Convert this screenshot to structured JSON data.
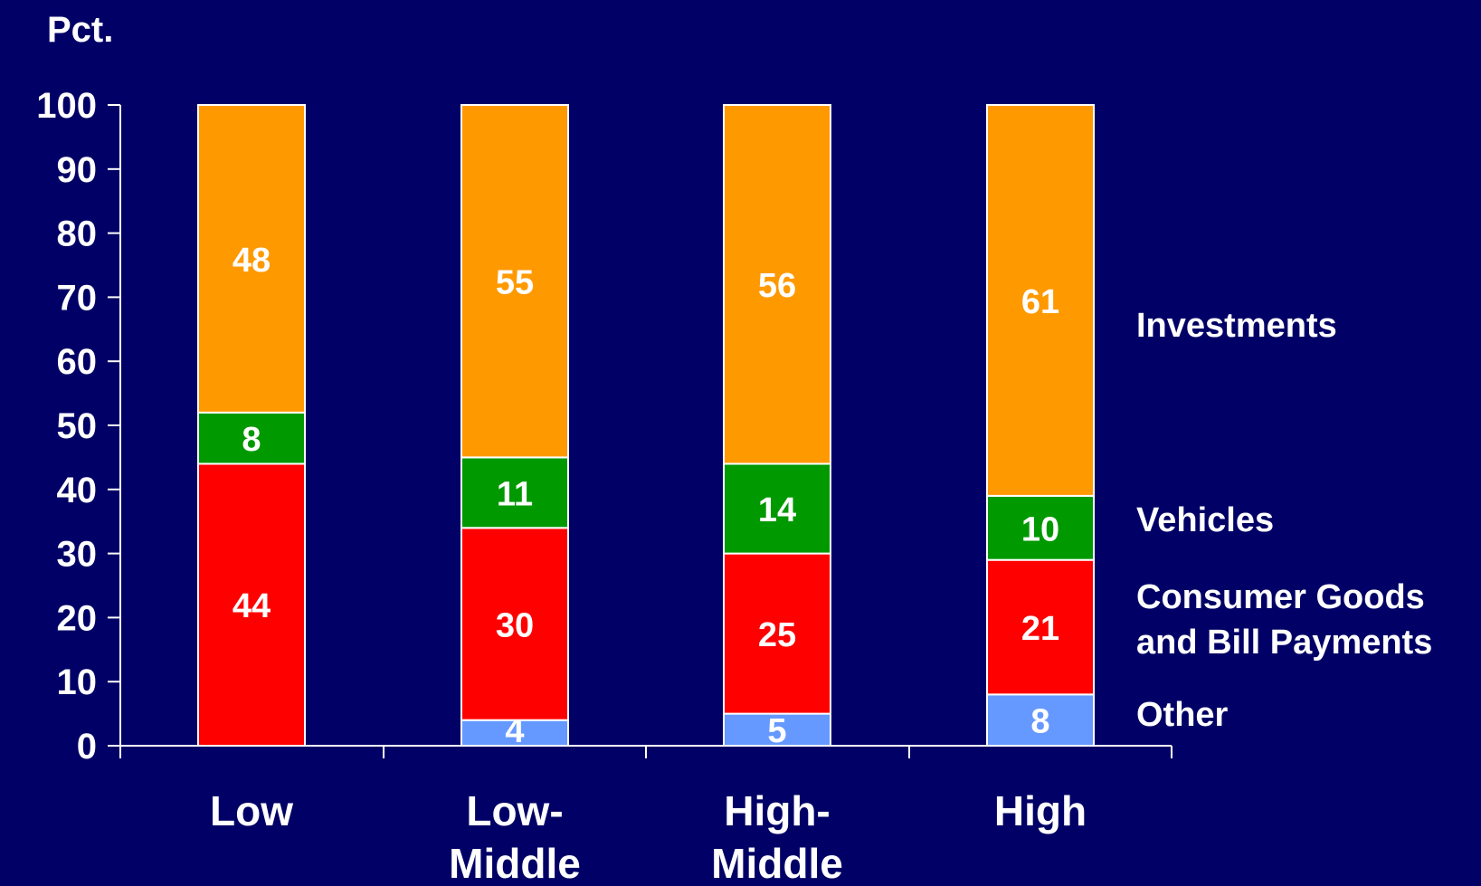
{
  "chart_data": {
    "type": "bar",
    "stacked": true,
    "y_unit_label": "Pct.",
    "ylim": [
      0,
      100
    ],
    "yticks": [
      0,
      10,
      20,
      30,
      40,
      50,
      60,
      70,
      80,
      90,
      100
    ],
    "categories": [
      [
        "Low"
      ],
      [
        "Low-",
        "Middle"
      ],
      [
        "High-",
        "Middle"
      ],
      [
        "High"
      ]
    ],
    "series": [
      {
        "name": "Other",
        "legend_lines": [
          "Other"
        ],
        "color": "#6699FF",
        "values": [
          0,
          4,
          5,
          8
        ]
      },
      {
        "name": "Consumer Goods and Bill Payments",
        "legend_lines": [
          "Consumer Goods",
          "and Bill Payments"
        ],
        "color": "#FF0000",
        "values": [
          44,
          30,
          25,
          21
        ]
      },
      {
        "name": "Vehicles",
        "legend_lines": [
          "Vehicles"
        ],
        "color": "#009900",
        "values": [
          8,
          11,
          14,
          10
        ]
      },
      {
        "name": "Investments",
        "legend_lines": [
          "Investments"
        ],
        "color": "#FF9900",
        "values": [
          48,
          55,
          56,
          61
        ]
      }
    ],
    "colors": {
      "background": "#000066",
      "axis": "#FFFFFF",
      "text": "#FFFFFF",
      "bar_outline": "#FFFFFF"
    }
  }
}
